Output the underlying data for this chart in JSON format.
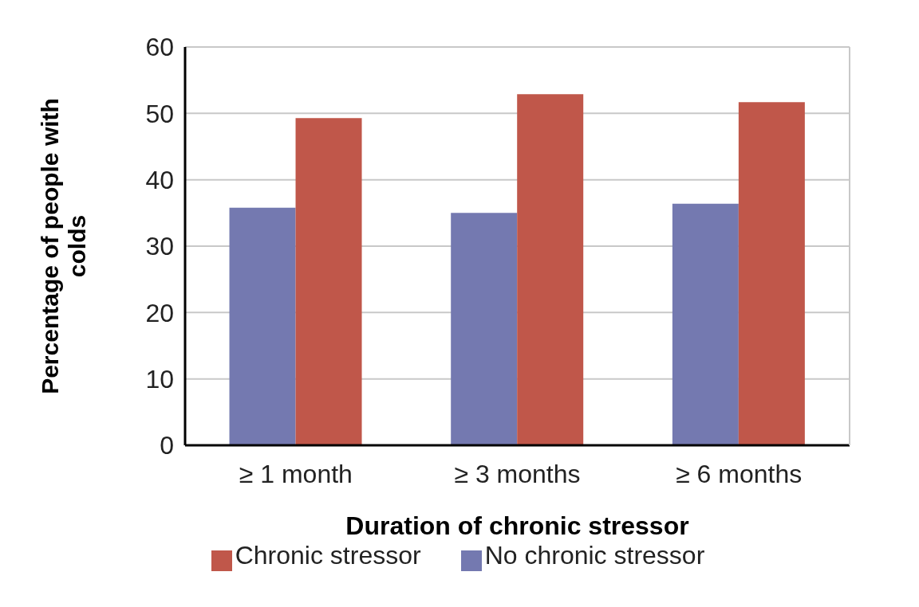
{
  "chart_data": {
    "type": "bar",
    "xlabel": "Duration of chronic stressor",
    "ylabel": "Percentage of people with colds",
    "categories": [
      "≥ 1 month",
      "≥ 3 months",
      "≥ 6 months"
    ],
    "series": [
      {
        "name": "No chronic stressor",
        "color": "#7479b0",
        "values": [
          35.8,
          35.0,
          36.4
        ]
      },
      {
        "name": "Chronic stressor",
        "color": "#c0574a",
        "values": [
          49.3,
          52.9,
          51.7
        ]
      }
    ],
    "ylim": [
      0,
      60
    ],
    "yticks": [
      0,
      10,
      20,
      30,
      40,
      50,
      60
    ],
    "grid": "y",
    "legend": "bottom"
  }
}
